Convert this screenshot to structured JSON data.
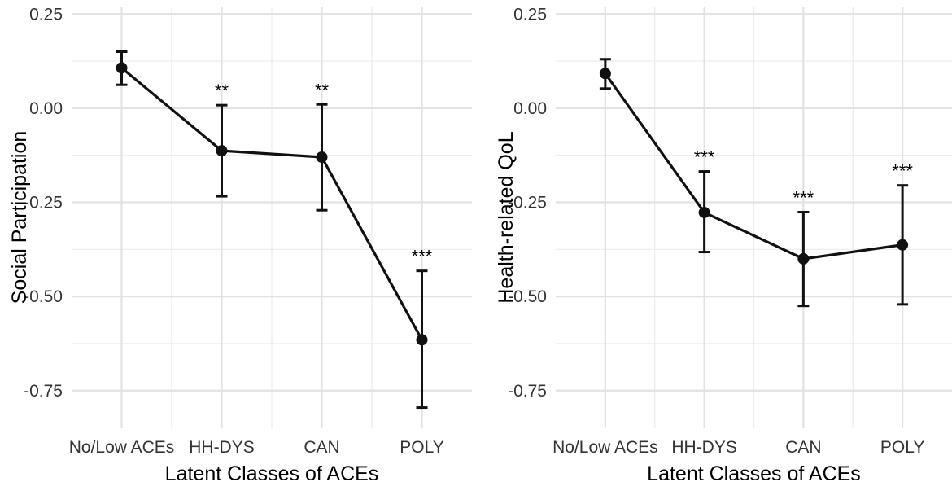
{
  "chart_data": [
    {
      "type": "line",
      "xlabel": "Latent Classes of ACEs",
      "ylabel": "Social Participation",
      "categories": [
        "No/Low ACEs",
        "HH-DYS",
        "CAN",
        "POLY"
      ],
      "values": [
        0.107,
        -0.113,
        -0.13,
        -0.615
      ],
      "error_low": [
        0.062,
        -0.234,
        -0.271,
        -0.795
      ],
      "error_high": [
        0.15,
        0.008,
        0.01,
        -0.432
      ],
      "significance": [
        "",
        "**",
        "**",
        "***"
      ],
      "ylim": [
        -0.85,
        0.27
      ],
      "yticks": [
        0.25,
        0.0,
        -0.25,
        -0.5,
        -0.75
      ],
      "ytick_labels": [
        "0.25",
        "0.00",
        "-0.25",
        "-0.50",
        "-0.75"
      ],
      "grid": true
    },
    {
      "type": "line",
      "xlabel": "Latent Classes of ACEs",
      "ylabel": "Health-related QoL",
      "categories": [
        "No/Low ACEs",
        "HH-DYS",
        "CAN",
        "POLY"
      ],
      "values": [
        0.092,
        -0.277,
        -0.4,
        -0.363
      ],
      "error_low": [
        0.052,
        -0.382,
        -0.525,
        -0.521
      ],
      "error_high": [
        0.13,
        -0.168,
        -0.276,
        -0.205
      ],
      "significance": [
        "",
        "***",
        "***",
        "***"
      ],
      "ylim": [
        -0.85,
        0.27
      ],
      "yticks": [
        0.25,
        0.0,
        -0.25,
        -0.5,
        -0.75
      ],
      "ytick_labels": [
        "0.25",
        "0.00",
        "-0.25",
        "-0.50",
        "-0.75"
      ],
      "grid": true
    }
  ]
}
